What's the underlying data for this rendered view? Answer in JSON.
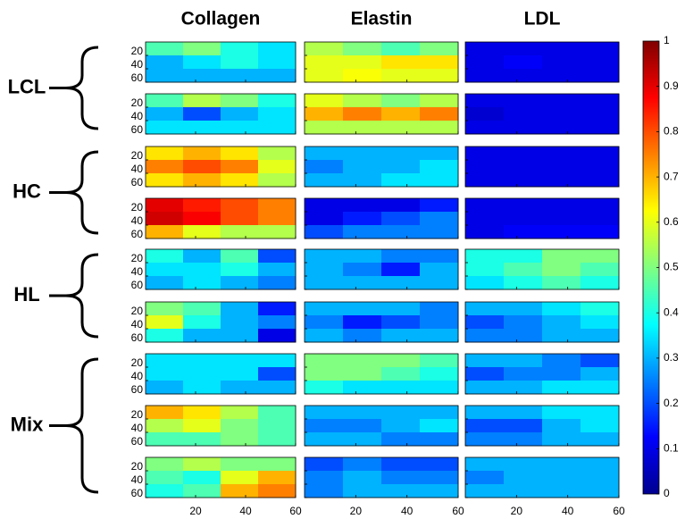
{
  "chart_data": {
    "type": "heatmap",
    "colormap": "jet",
    "column_titles": [
      "Collagen",
      "Elastin",
      "LDL"
    ],
    "xlim": [
      0,
      60
    ],
    "ylim": [
      0,
      60
    ],
    "xticks": [
      20,
      40,
      60
    ],
    "yticks": [
      20,
      40,
      60
    ],
    "clim": [
      0,
      1
    ],
    "cticks": [
      0,
      0.1,
      0.2,
      0.3,
      0.4,
      0.5,
      0.6,
      0.7,
      0.8,
      0.9,
      1
    ],
    "groups": [
      {
        "label": "LCL",
        "panels": [
          [
            [
              [
                0.45,
                0.5,
                0.4,
                0.35
              ],
              [
                0.3,
                0.35,
                0.4,
                0.35
              ],
              [
                0.3,
                0.3,
                0.3,
                0.3
              ]
            ],
            [
              [
                0.55,
                0.5,
                0.45,
                0.5
              ],
              [
                0.6,
                0.6,
                0.65,
                0.65
              ],
              [
                0.6,
                0.62,
                0.6,
                0.6
              ]
            ],
            [
              [
                0.1,
                0.1,
                0.1,
                0.1
              ],
              [
                0.1,
                0.12,
                0.1,
                0.1
              ],
              [
                0.1,
                0.1,
                0.1,
                0.1
              ]
            ]
          ],
          [
            [
              [
                0.45,
                0.55,
                0.5,
                0.4
              ],
              [
                0.3,
                0.2,
                0.3,
                0.35
              ],
              [
                0.35,
                0.35,
                0.35,
                0.35
              ]
            ],
            [
              [
                0.6,
                0.55,
                0.5,
                0.55
              ],
              [
                0.7,
                0.75,
                0.7,
                0.75
              ],
              [
                0.55,
                0.55,
                0.55,
                0.55
              ]
            ],
            [
              [
                0.1,
                0.1,
                0.1,
                0.1
              ],
              [
                0.08,
                0.1,
                0.1,
                0.1
              ],
              [
                0.1,
                0.1,
                0.1,
                0.1
              ]
            ]
          ]
        ]
      },
      {
        "label": "HC",
        "panels": [
          [
            [
              [
                0.65,
                0.7,
                0.65,
                0.55
              ],
              [
                0.75,
                0.8,
                0.75,
                0.6
              ],
              [
                0.65,
                0.7,
                0.65,
                0.55
              ]
            ],
            [
              [
                0.3,
                0.3,
                0.3,
                0.3
              ],
              [
                0.25,
                0.3,
                0.3,
                0.35
              ],
              [
                0.3,
                0.3,
                0.35,
                0.35
              ]
            ],
            [
              [
                0.1,
                0.1,
                0.1,
                0.1
              ],
              [
                0.1,
                0.1,
                0.1,
                0.1
              ],
              [
                0.1,
                0.1,
                0.1,
                0.1
              ]
            ]
          ],
          [
            [
              [
                0.9,
                0.85,
                0.8,
                0.75
              ],
              [
                0.92,
                0.88,
                0.8,
                0.75
              ],
              [
                0.7,
                0.6,
                0.55,
                0.55
              ]
            ],
            [
              [
                0.1,
                0.1,
                0.1,
                0.15
              ],
              [
                0.1,
                0.15,
                0.2,
                0.25
              ],
              [
                0.2,
                0.25,
                0.25,
                0.25
              ]
            ],
            [
              [
                0.1,
                0.1,
                0.1,
                0.1
              ],
              [
                0.1,
                0.1,
                0.1,
                0.1
              ],
              [
                0.1,
                0.12,
                0.12,
                0.12
              ]
            ]
          ]
        ]
      },
      {
        "label": "HL",
        "panels": [
          [
            [
              [
                0.4,
                0.3,
                0.45,
                0.2
              ],
              [
                0.35,
                0.35,
                0.4,
                0.3
              ],
              [
                0.3,
                0.35,
                0.3,
                0.25
              ]
            ],
            [
              [
                0.3,
                0.3,
                0.25,
                0.25
              ],
              [
                0.3,
                0.25,
                0.15,
                0.3
              ],
              [
                0.3,
                0.3,
                0.3,
                0.3
              ]
            ],
            [
              [
                0.4,
                0.4,
                0.5,
                0.5
              ],
              [
                0.4,
                0.45,
                0.5,
                0.45
              ],
              [
                0.35,
                0.4,
                0.45,
                0.4
              ]
            ]
          ],
          [
            [
              [
                0.5,
                0.45,
                0.3,
                0.15
              ],
              [
                0.6,
                0.4,
                0.3,
                0.25
              ],
              [
                0.4,
                0.3,
                0.3,
                0.1
              ]
            ],
            [
              [
                0.3,
                0.3,
                0.3,
                0.25
              ],
              [
                0.25,
                0.15,
                0.2,
                0.25
              ],
              [
                0.3,
                0.25,
                0.3,
                0.3
              ]
            ],
            [
              [
                0.3,
                0.3,
                0.35,
                0.4
              ],
              [
                0.2,
                0.25,
                0.3,
                0.35
              ],
              [
                0.25,
                0.25,
                0.3,
                0.3
              ]
            ]
          ]
        ]
      },
      {
        "label": "Mix",
        "panels": [
          [
            [
              [
                0.35,
                0.35,
                0.35,
                0.35
              ],
              [
                0.35,
                0.35,
                0.35,
                0.2
              ],
              [
                0.3,
                0.35,
                0.3,
                0.3
              ]
            ],
            [
              [
                0.5,
                0.5,
                0.5,
                0.45
              ],
              [
                0.5,
                0.5,
                0.45,
                0.4
              ],
              [
                0.4,
                0.35,
                0.35,
                0.35
              ]
            ],
            [
              [
                0.3,
                0.3,
                0.25,
                0.2
              ],
              [
                0.2,
                0.25,
                0.25,
                0.3
              ],
              [
                0.3,
                0.3,
                0.35,
                0.35
              ]
            ]
          ],
          [
            [
              [
                0.7,
                0.65,
                0.55,
                0.45
              ],
              [
                0.55,
                0.6,
                0.5,
                0.45
              ],
              [
                0.45,
                0.45,
                0.5,
                0.45
              ]
            ],
            [
              [
                0.3,
                0.3,
                0.3,
                0.3
              ],
              [
                0.25,
                0.25,
                0.3,
                0.35
              ],
              [
                0.3,
                0.3,
                0.25,
                0.25
              ]
            ],
            [
              [
                0.3,
                0.3,
                0.35,
                0.35
              ],
              [
                0.2,
                0.2,
                0.3,
                0.35
              ],
              [
                0.25,
                0.25,
                0.3,
                0.3
              ]
            ]
          ],
          [
            [
              [
                0.5,
                0.55,
                0.5,
                0.5
              ],
              [
                0.45,
                0.4,
                0.6,
                0.7
              ],
              [
                0.4,
                0.45,
                0.7,
                0.75
              ]
            ],
            [
              [
                0.2,
                0.25,
                0.2,
                0.2
              ],
              [
                0.25,
                0.3,
                0.25,
                0.25
              ],
              [
                0.25,
                0.3,
                0.3,
                0.3
              ]
            ],
            [
              [
                0.3,
                0.3,
                0.3,
                0.3
              ],
              [
                0.25,
                0.3,
                0.3,
                0.3
              ],
              [
                0.3,
                0.3,
                0.3,
                0.3
              ]
            ]
          ]
        ]
      }
    ]
  }
}
